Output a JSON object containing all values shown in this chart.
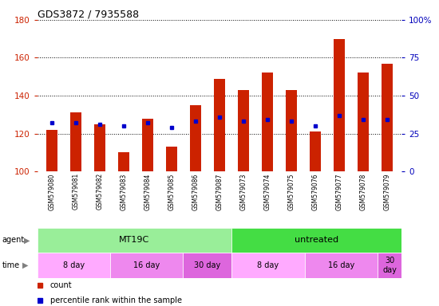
{
  "title": "GDS3872 / 7935588",
  "samples": [
    "GSM579080",
    "GSM579081",
    "GSM579082",
    "GSM579083",
    "GSM579084",
    "GSM579085",
    "GSM579086",
    "GSM579087",
    "GSM579073",
    "GSM579074",
    "GSM579075",
    "GSM579076",
    "GSM579077",
    "GSM579078",
    "GSM579079"
  ],
  "counts": [
    122,
    131,
    125,
    110,
    128,
    113,
    135,
    149,
    143,
    152,
    143,
    121,
    170,
    152,
    157
  ],
  "percentile_ranks": [
    32,
    32,
    31,
    30,
    32,
    29,
    33,
    36,
    33,
    34,
    33,
    30,
    37,
    34,
    34
  ],
  "ylim_left": [
    100,
    180
  ],
  "ylim_right": [
    0,
    100
  ],
  "yticks_left": [
    100,
    120,
    140,
    160,
    180
  ],
  "yticks_right": [
    0,
    25,
    50,
    75,
    100
  ],
  "bar_color": "#cc2200",
  "dot_color": "#0000cc",
  "plot_bg": "#ffffff",
  "left_label_color": "#cc2200",
  "right_label_color": "#0000bb",
  "agent_groups": [
    {
      "label": "MT19C",
      "start": 0,
      "end": 8,
      "color": "#99ee99"
    },
    {
      "label": "untreated",
      "start": 8,
      "end": 15,
      "color": "#44dd44"
    }
  ],
  "time_groups": [
    {
      "label": "8 day",
      "start": 0,
      "end": 3,
      "color": "#ffaaff"
    },
    {
      "label": "16 day",
      "start": 3,
      "end": 6,
      "color": "#ee88ee"
    },
    {
      "label": "30 day",
      "start": 6,
      "end": 8,
      "color": "#dd66dd"
    },
    {
      "label": "8 day",
      "start": 8,
      "end": 11,
      "color": "#ffaaff"
    },
    {
      "label": "16 day",
      "start": 11,
      "end": 14,
      "color": "#ee88ee"
    },
    {
      "label": "30\nday",
      "start": 14,
      "end": 15,
      "color": "#dd66dd"
    }
  ],
  "sample_bg_color": "#cccccc",
  "legend_count_color": "#cc2200",
  "legend_pct_color": "#0000cc",
  "bar_width": 0.45
}
